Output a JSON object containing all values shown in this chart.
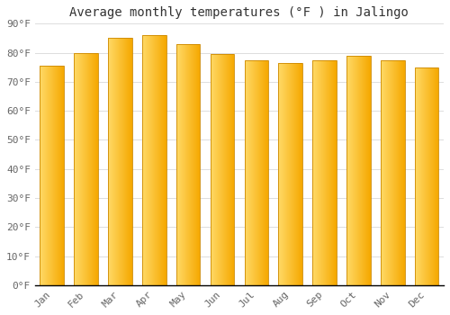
{
  "title": "Average monthly temperatures (°F ) in Jalingo",
  "months": [
    "Jan",
    "Feb",
    "Mar",
    "Apr",
    "May",
    "Jun",
    "Jul",
    "Aug",
    "Sep",
    "Oct",
    "Nov",
    "Dec"
  ],
  "values": [
    75.5,
    80.0,
    85.0,
    86.0,
    83.0,
    79.5,
    77.5,
    76.5,
    77.5,
    79.0,
    77.5,
    75.0
  ],
  "bar_color_left": "#FFD966",
  "bar_color_right": "#F5A800",
  "background_color": "#FFFFFF",
  "grid_color": "#DDDDDD",
  "ylim": [
    0,
    90
  ],
  "yticks": [
    0,
    10,
    20,
    30,
    40,
    50,
    60,
    70,
    80,
    90
  ],
  "ytick_labels": [
    "0°F",
    "10°F",
    "20°F",
    "30°F",
    "40°F",
    "50°F",
    "60°F",
    "70°F",
    "80°F",
    "90°F"
  ],
  "title_fontsize": 10,
  "tick_fontsize": 8,
  "bar_width": 0.7
}
